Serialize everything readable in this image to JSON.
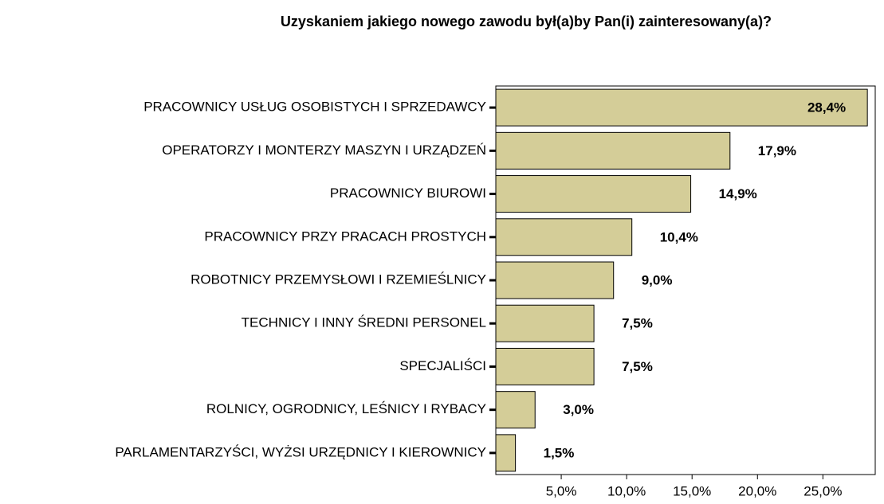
{
  "chart_data": {
    "type": "barh",
    "title": "Uzyskaniem jakiego nowego zawodu był(a)by Pan(i) zainteresowany(a)?",
    "categories": [
      "PRACOWNICY USŁUG OSOBISTYCH I SPRZEDAWCY",
      "OPERATORZY I MONTERZY MASZYN I URZĄDZEŃ",
      "PRACOWNICY BIUROWI",
      "PRACOWNICY PRZY PRACACH PROSTYCH",
      "ROBOTNICY PRZEMYSŁOWI I RZEMIEŚLNICY",
      "TECHNICY I INNY ŚREDNI PERSONEL",
      "SPECJALIŚCI",
      "ROLNICY, OGRODNICY, LEŚNICY I RYBACY",
      "PARLAMENTARZYŚCI, WYŻSI URZĘDNICY I KIEROWNICY"
    ],
    "values": [
      28.4,
      17.9,
      14.9,
      10.4,
      9.0,
      7.5,
      7.5,
      3.0,
      1.5
    ],
    "value_labels": [
      "28,4%",
      "17,9%",
      "14,9%",
      "10,4%",
      "9,0%",
      "7,5%",
      "7,5%",
      "3,0%",
      "1,5%"
    ],
    "color": "#d4cd98",
    "xlim": [
      0,
      29
    ],
    "xticks": [
      {
        "value": 5,
        "label": "5,0%"
      },
      {
        "value": 10,
        "label": "10,0%"
      },
      {
        "value": 15,
        "label": "15,0%"
      },
      {
        "value": 20,
        "label": "20,0%"
      },
      {
        "value": 25,
        "label": "25,0%"
      }
    ]
  }
}
